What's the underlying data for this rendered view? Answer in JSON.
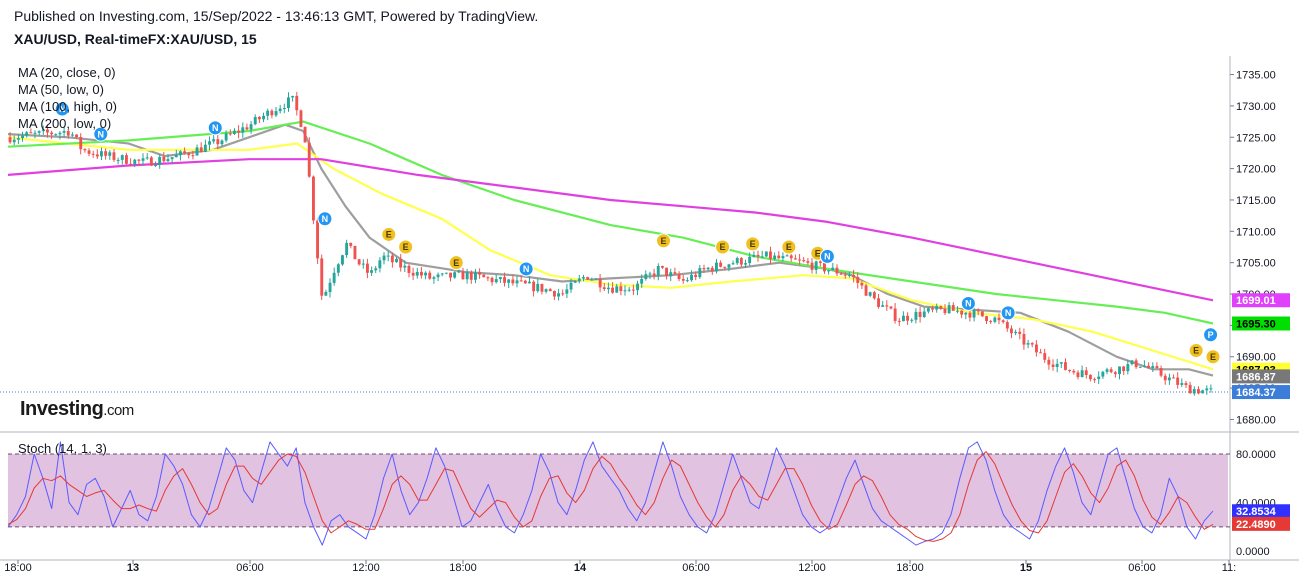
{
  "header": {
    "publisher": "Published on Investing.com, 15/Sep/2022 - 13:46:13 GMT, Powered by TradingView.",
    "symbol": "XAU/USD, Real-timeFX:XAU/USD, 15"
  },
  "logo": {
    "main": "Investing",
    "suffix": ".com"
  },
  "ma_legend": [
    "MA (20, close, 0)",
    "MA (50, low, 0)",
    "MA (100, high, 0)",
    "MA (200, low, 0)"
  ],
  "stoch_legend": "Stoch (14, 1, 3)",
  "colors": {
    "up": "#26a69a",
    "down": "#ef5350",
    "ma20": "#9e9e9e",
    "ma50": "#ffff4d",
    "ma100": "#66ee55",
    "ma200": "#e040e0",
    "stoch_k": "#5b5bff",
    "stoch_d": "#e53935",
    "stoch_band": "#dfbfdf",
    "last_price": "#3b7dd8"
  },
  "chart_data": [
    {
      "type": "candlestick",
      "title": "XAU/USD, Real-timeFX:XAU/USD, 15",
      "ylim": [
        1678,
        1737
      ],
      "y_ticks": [
        "1680.00",
        "1685.00",
        "1690.00",
        "1695.00",
        "1700.00",
        "1705.00",
        "1710.00",
        "1715.00",
        "1720.00",
        "1725.00",
        "1730.00",
        "1735.00"
      ],
      "x_ticks": [
        "18:00",
        "13",
        "06:00",
        "12:00",
        "18:00",
        "14",
        "06:00",
        "12:00",
        "18:00",
        "15",
        "06:00",
        "11:"
      ],
      "price_tags": [
        {
          "name": "MA (200, low, 0)",
          "value": "1699.01",
          "bg": "#e040fb",
          "fg": "#ffffff"
        },
        {
          "name": "MA (100, high, 0)",
          "value": "1695.30",
          "bg": "#00e000",
          "fg": "#000000"
        },
        {
          "name": "MA (50, low, 0)",
          "value": "1687.93",
          "bg": "#ffff33",
          "fg": "#000000"
        },
        {
          "name": "MA (20, close, 0)",
          "value": "1686.87",
          "bg": "#787878",
          "fg": "#ffffff"
        },
        {
          "name": "Last price",
          "value": "1684.37",
          "bg": "#3b7dd8",
          "fg": "#ffffff"
        }
      ],
      "last_price": 1684.37,
      "series": [
        {
          "name": "MA (20, close, 0)",
          "points": [
            [
              0,
              1725.5
            ],
            [
              0.05,
              1725
            ],
            [
              0.1,
              1724
            ],
            [
              0.13,
              1722
            ],
            [
              0.17,
              1723
            ],
            [
              0.2,
              1725
            ],
            [
              0.23,
              1727
            ],
            [
              0.245,
              1726
            ],
            [
              0.26,
              1720
            ],
            [
              0.28,
              1714
            ],
            [
              0.3,
              1709
            ],
            [
              0.33,
              1705
            ],
            [
              0.38,
              1703.5
            ],
            [
              0.42,
              1703
            ],
            [
              0.46,
              1702
            ],
            [
              0.5,
              1702.5
            ],
            [
              0.55,
              1703
            ],
            [
              0.6,
              1704
            ],
            [
              0.64,
              1705
            ],
            [
              0.68,
              1704
            ],
            [
              0.7,
              1703
            ],
            [
              0.73,
              1700
            ],
            [
              0.76,
              1698
            ],
            [
              0.8,
              1697.5
            ],
            [
              0.84,
              1697
            ],
            [
              0.88,
              1694
            ],
            [
              0.92,
              1690
            ],
            [
              0.95,
              1688
            ],
            [
              0.98,
              1688
            ],
            [
              1,
              1687
            ]
          ]
        },
        {
          "name": "MA (50, low, 0)",
          "points": [
            [
              0,
              1725
            ],
            [
              0.1,
              1723
            ],
            [
              0.2,
              1723
            ],
            [
              0.24,
              1724
            ],
            [
              0.27,
              1720
            ],
            [
              0.31,
              1716
            ],
            [
              0.36,
              1712
            ],
            [
              0.4,
              1707
            ],
            [
              0.45,
              1703
            ],
            [
              0.5,
              1701.5
            ],
            [
              0.55,
              1701
            ],
            [
              0.6,
              1702
            ],
            [
              0.66,
              1703
            ],
            [
              0.7,
              1702.5
            ],
            [
              0.75,
              1699
            ],
            [
              0.8,
              1697
            ],
            [
              0.85,
              1696
            ],
            [
              0.9,
              1694
            ],
            [
              0.95,
              1691
            ],
            [
              1,
              1688
            ]
          ]
        },
        {
          "name": "MA (100, high, 0)",
          "points": [
            [
              0,
              1723.5
            ],
            [
              0.1,
              1724.5
            ],
            [
              0.2,
              1726
            ],
            [
              0.245,
              1727.5
            ],
            [
              0.3,
              1724
            ],
            [
              0.36,
              1719
            ],
            [
              0.42,
              1715
            ],
            [
              0.5,
              1711
            ],
            [
              0.56,
              1709
            ],
            [
              0.62,
              1706
            ],
            [
              0.68,
              1704
            ],
            [
              0.75,
              1702
            ],
            [
              0.82,
              1700
            ],
            [
              0.87,
              1699
            ],
            [
              0.92,
              1698
            ],
            [
              0.96,
              1697
            ],
            [
              1,
              1695.3
            ]
          ]
        },
        {
          "name": "MA (200, low, 0)",
          "points": [
            [
              0,
              1719
            ],
            [
              0.1,
              1720.5
            ],
            [
              0.2,
              1721.5
            ],
            [
              0.26,
              1721.5
            ],
            [
              0.34,
              1719
            ],
            [
              0.42,
              1717
            ],
            [
              0.5,
              1715
            ],
            [
              0.56,
              1714
            ],
            [
              0.62,
              1713
            ],
            [
              0.68,
              1711.5
            ],
            [
              0.75,
              1709
            ],
            [
              0.8,
              1707
            ],
            [
              0.85,
              1705
            ],
            [
              0.9,
              1703
            ],
            [
              0.95,
              1701
            ],
            [
              1,
              1699
            ]
          ]
        }
      ],
      "candle_path": [
        [
          0,
          1725
        ],
        [
          0.05,
          1726
        ],
        [
          0.06,
          1723
        ],
        [
          0.08,
          1722
        ],
        [
          0.11,
          1721
        ],
        [
          0.14,
          1722
        ],
        [
          0.17,
          1724
        ],
        [
          0.2,
          1727
        ],
        [
          0.22,
          1729.5
        ],
        [
          0.235,
          1731
        ],
        [
          0.245,
          1726
        ],
        [
          0.255,
          1708
        ],
        [
          0.26,
          1699
        ],
        [
          0.27,
          1704
        ],
        [
          0.28,
          1708
        ],
        [
          0.29,
          1705
        ],
        [
          0.3,
          1703
        ],
        [
          0.31,
          1706
        ],
        [
          0.33,
          1704
        ],
        [
          0.35,
          1702.5
        ],
        [
          0.38,
          1703
        ],
        [
          0.41,
          1702
        ],
        [
          0.44,
          1701
        ],
        [
          0.46,
          1700
        ],
        [
          0.48,
          1703
        ],
        [
          0.5,
          1701
        ],
        [
          0.52,
          1701
        ],
        [
          0.54,
          1704
        ],
        [
          0.56,
          1702
        ],
        [
          0.58,
          1704
        ],
        [
          0.6,
          1705
        ],
        [
          0.63,
          1706
        ],
        [
          0.66,
          1705
        ],
        [
          0.68,
          1704
        ],
        [
          0.7,
          1703
        ],
        [
          0.72,
          1699
        ],
        [
          0.74,
          1696
        ],
        [
          0.76,
          1697
        ],
        [
          0.78,
          1697.5
        ],
        [
          0.8,
          1697
        ],
        [
          0.82,
          1696
        ],
        [
          0.84,
          1693
        ],
        [
          0.86,
          1690
        ],
        [
          0.88,
          1688
        ],
        [
          0.9,
          1687
        ],
        [
          0.92,
          1688
        ],
        [
          0.94,
          1689
        ],
        [
          0.96,
          1687
        ],
        [
          0.98,
          1685
        ],
        [
          1,
          1684.4
        ]
      ],
      "events": [
        {
          "label": "N",
          "color": "#2196f3",
          "x": 0.045,
          "y": 1729.5
        },
        {
          "label": "N",
          "color": "#2196f3",
          "x": 0.077,
          "y": 1725.5
        },
        {
          "label": "N",
          "color": "#2196f3",
          "x": 0.172,
          "y": 1726.5
        },
        {
          "label": "N",
          "color": "#2196f3",
          "x": 0.263,
          "y": 1712
        },
        {
          "label": "E",
          "color": "#f0c020",
          "x": 0.316,
          "y": 1709.5
        },
        {
          "label": "E",
          "color": "#f0c020",
          "x": 0.33,
          "y": 1707.5
        },
        {
          "label": "E",
          "color": "#f0c020",
          "x": 0.372,
          "y": 1705
        },
        {
          "label": "N",
          "color": "#2196f3",
          "x": 0.43,
          "y": 1704
        },
        {
          "label": "E",
          "color": "#f0c020",
          "x": 0.544,
          "y": 1708.5
        },
        {
          "label": "E",
          "color": "#f0c020",
          "x": 0.593,
          "y": 1707.5
        },
        {
          "label": "E",
          "color": "#f0c020",
          "x": 0.618,
          "y": 1708
        },
        {
          "label": "E",
          "color": "#f0c020",
          "x": 0.648,
          "y": 1707.5
        },
        {
          "label": "E",
          "color": "#f0c020",
          "x": 0.672,
          "y": 1706.5
        },
        {
          "label": "N",
          "color": "#2196f3",
          "x": 0.68,
          "y": 1706
        },
        {
          "label": "N",
          "color": "#2196f3",
          "x": 0.797,
          "y": 1698.5
        },
        {
          "label": "N",
          "color": "#2196f3",
          "x": 0.83,
          "y": 1697
        },
        {
          "label": "E",
          "color": "#f0c020",
          "x": 0.986,
          "y": 1691
        },
        {
          "label": "P",
          "color": "#2196f3",
          "x": 0.998,
          "y": 1693.5
        },
        {
          "label": "E",
          "color": "#f0c020",
          "x": 1.0,
          "y": 1690
        }
      ]
    },
    {
      "type": "line",
      "title": "Stoch (14, 1, 3)",
      "ylim": [
        -4,
        94
      ],
      "y_ticks": [
        "80.0000",
        "40.0000",
        "0.0000"
      ],
      "band": [
        20,
        80
      ],
      "value_tags": [
        {
          "name": "%K",
          "value": "32.8534",
          "bg": "#3030ff",
          "fg": "#ffffff"
        },
        {
          "name": "%D",
          "value": "22.4890",
          "bg": "#e53935",
          "fg": "#ffffff"
        }
      ],
      "series": [
        {
          "name": "%K",
          "values": [
            20,
            30,
            45,
            80,
            60,
            35,
            90,
            40,
            30,
            55,
            60,
            45,
            20,
            35,
            50,
            30,
            25,
            45,
            80,
            70,
            55,
            30,
            20,
            35,
            60,
            85,
            75,
            50,
            40,
            65,
            90,
            80,
            70,
            85,
            40,
            20,
            5,
            25,
            30,
            20,
            15,
            10,
            30,
            60,
            80,
            50,
            30,
            40,
            60,
            85,
            70,
            45,
            20,
            25,
            40,
            55,
            35,
            20,
            15,
            30,
            50,
            80,
            65,
            40,
            30,
            50,
            75,
            90,
            70,
            60,
            50,
            35,
            25,
            40,
            65,
            90,
            70,
            45,
            30,
            20,
            15,
            30,
            55,
            80,
            60,
            40,
            35,
            60,
            85,
            70,
            50,
            30,
            20,
            15,
            20,
            40,
            60,
            75,
            55,
            35,
            25,
            20,
            15,
            10,
            5,
            8,
            10,
            15,
            30,
            60,
            85,
            90,
            75,
            50,
            30,
            20,
            15,
            10,
            25,
            50,
            70,
            85,
            65,
            40,
            30,
            55,
            80,
            85,
            60,
            35,
            20,
            15,
            30,
            60,
            45,
            20,
            10,
            25,
            33
          ]
        },
        {
          "name": "%D",
          "values": [
            22,
            26,
            35,
            52,
            60,
            58,
            62,
            55,
            50,
            45,
            48,
            50,
            42,
            35,
            35,
            38,
            35,
            33,
            50,
            62,
            68,
            55,
            40,
            30,
            35,
            55,
            70,
            70,
            60,
            55,
            65,
            75,
            80,
            78,
            65,
            45,
            25,
            15,
            20,
            25,
            22,
            18,
            18,
            35,
            55,
            62,
            55,
            42,
            42,
            55,
            68,
            66,
            50,
            35,
            28,
            35,
            42,
            40,
            28,
            20,
            25,
            45,
            60,
            62,
            48,
            40,
            50,
            68,
            78,
            72,
            60,
            50,
            38,
            30,
            40,
            60,
            75,
            70,
            55,
            40,
            28,
            20,
            30,
            50,
            62,
            55,
            45,
            42,
            55,
            68,
            68,
            55,
            38,
            25,
            18,
            22,
            38,
            55,
            62,
            58,
            45,
            30,
            22,
            18,
            12,
            9,
            8,
            10,
            15,
            30,
            55,
            75,
            82,
            72,
            55,
            38,
            25,
            17,
            15,
            25,
            45,
            65,
            72,
            62,
            48,
            40,
            52,
            70,
            75,
            62,
            42,
            28,
            22,
            32,
            45,
            40,
            28,
            18,
            22
          ]
        }
      ]
    }
  ]
}
